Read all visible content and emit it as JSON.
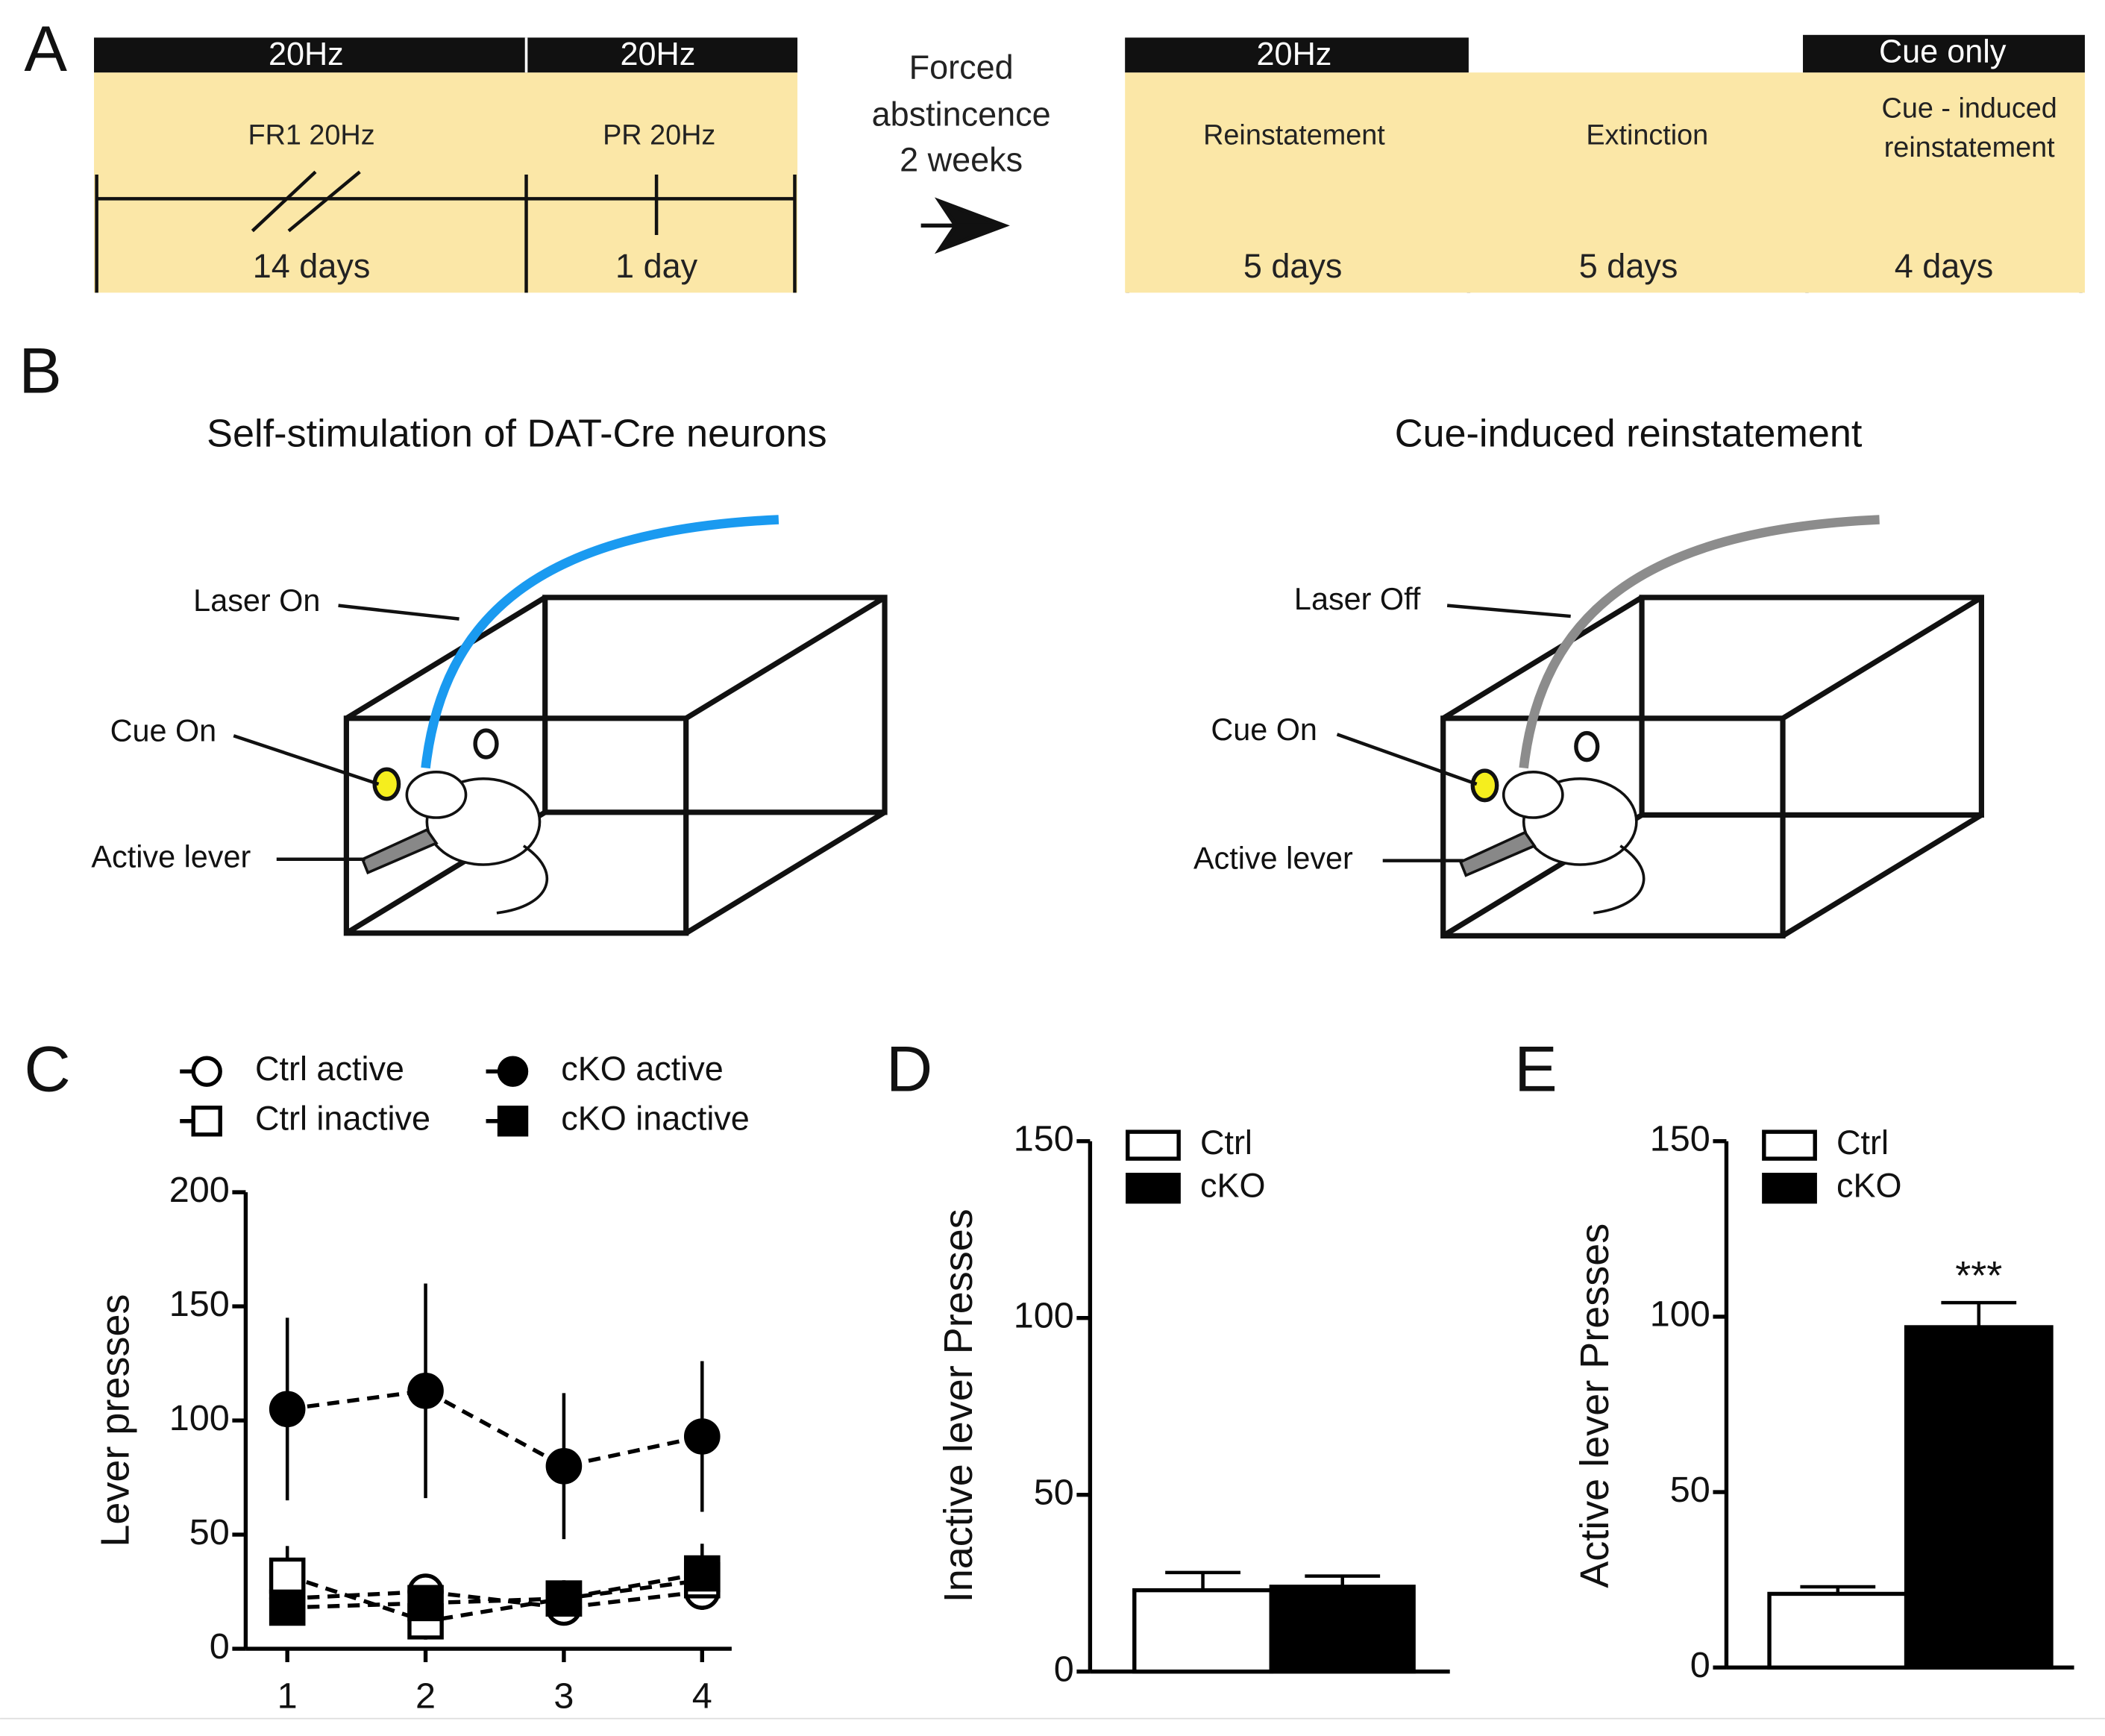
{
  "panel_a": {
    "label": "A",
    "left": {
      "headers": [
        "20Hz",
        "20Hz"
      ],
      "phases": [
        "FR1 20Hz",
        "PR 20Hz"
      ],
      "durations": [
        "14 days",
        "1 day"
      ]
    },
    "arrow_text": [
      "Forced",
      "abstincence",
      "2 weeks"
    ],
    "right": {
      "headers": [
        "20Hz",
        "Cue only"
      ],
      "phases": [
        "Reinstatement",
        "Extinction",
        [
          "Cue - induced",
          "reinstatement"
        ]
      ],
      "durations": [
        "5 days",
        "5 days",
        "4 days"
      ]
    }
  },
  "panel_b": {
    "label": "B",
    "left": {
      "title": "Self-stimulation of DAT-Cre neurons",
      "labels": [
        "Laser On",
        "Cue On",
        "Active lever"
      ]
    },
    "right": {
      "title": "Cue-induced reinstatement",
      "labels": [
        "Laser Off",
        "Cue On",
        "Active lever"
      ]
    }
  },
  "chart_data": [
    {
      "type": "line",
      "panel": "C",
      "y_label": "Lever presses",
      "categories": [
        "1",
        "2",
        "3",
        "4"
      ],
      "ylim": [
        0,
        200
      ],
      "yticks": [
        0,
        50,
        100,
        150,
        200
      ],
      "series": [
        {
          "name": "Ctrl active",
          "marker": "circle",
          "color": "#ffffff",
          "values": [
            22,
            25,
            18,
            25
          ],
          "errors": [
            7,
            7,
            6,
            8
          ]
        },
        {
          "name": "Ctrl inactive",
          "marker": "square",
          "color": "#ffffff",
          "values": [
            32,
            12,
            22,
            30
          ],
          "errors": [
            13,
            8,
            8,
            10
          ]
        },
        {
          "name": "cKO active",
          "marker": "circle",
          "color": "#000000",
          "values": [
            105,
            113,
            80,
            93
          ],
          "errors": [
            40,
            47,
            32,
            33
          ]
        },
        {
          "name": "cKO inactive",
          "marker": "square",
          "color": "#000000",
          "values": [
            18,
            20,
            22,
            33
          ],
          "errors": [
            5,
            6,
            6,
            13
          ]
        }
      ]
    },
    {
      "type": "bar",
      "panel": "D",
      "y_label": "Inactive lever Presses",
      "ylim": [
        0,
        150
      ],
      "yticks": [
        0,
        50,
        100,
        150
      ],
      "series": [
        {
          "name": "Ctrl",
          "color": "#ffffff",
          "values": [
            23
          ],
          "errors": [
            5
          ]
        },
        {
          "name": "cKO",
          "color": "#000000",
          "values": [
            24
          ],
          "errors": [
            3
          ]
        }
      ]
    },
    {
      "type": "bar",
      "panel": "E",
      "y_label": "Active lever Presses",
      "ylim": [
        0,
        150
      ],
      "yticks": [
        0,
        50,
        100,
        150
      ],
      "annotation": "***",
      "series": [
        {
          "name": "Ctrl",
          "color": "#ffffff",
          "values": [
            21
          ],
          "errors": [
            2
          ]
        },
        {
          "name": "cKO",
          "color": "#000000",
          "values": [
            97
          ],
          "errors": [
            7
          ]
        }
      ]
    }
  ]
}
